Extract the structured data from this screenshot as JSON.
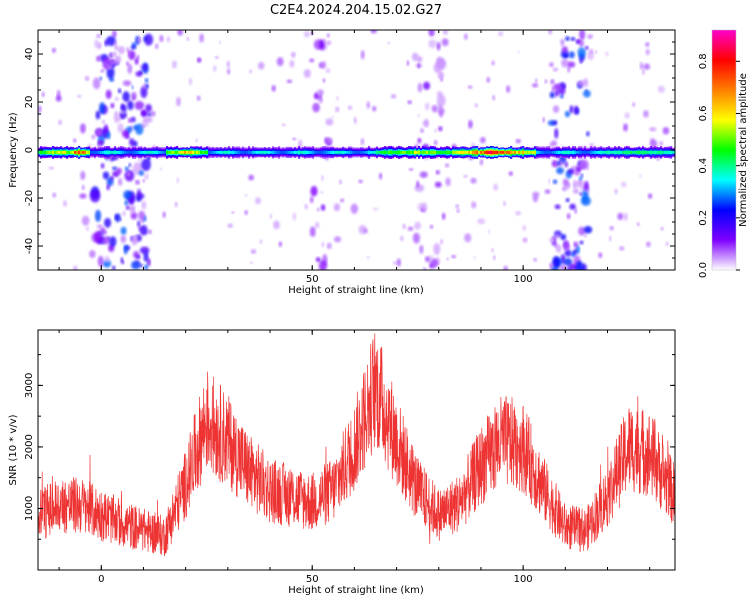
{
  "figure_title": "C2E4.2024.204.15.02.G27",
  "colors": {
    "snr_line": "#ee3333",
    "ridge_colormap": [
      "#ffffff",
      "#7f00ff",
      "#0000ff",
      "#00ffff",
      "#00ff00",
      "#ffff00",
      "#ff7f00",
      "#ff0000",
      "#ff00cc"
    ]
  },
  "chart_data": [
    {
      "type": "heatmap",
      "title": "",
      "xlabel": "Height of straight line (km)",
      "ylabel": "Frequency (Hz)",
      "xlim": [
        -15,
        136
      ],
      "ylim": [
        -50,
        50
      ],
      "xticks": [
        0,
        50,
        100
      ],
      "yticks": [
        -40,
        -20,
        0,
        20,
        40
      ],
      "colorbar": {
        "label": "Normalized spectral amplitude",
        "range": [
          0,
          0.92
        ],
        "ticks": [
          0.0,
          0.2,
          0.4,
          0.6,
          0.8
        ]
      },
      "zero_frequency_ridge": {
        "frequency": -1,
        "amplitude_segments": [
          {
            "from": -15,
            "to": -5,
            "peak": 0.65
          },
          {
            "from": -8,
            "to": -3,
            "peak": 0.9
          },
          {
            "from": 15,
            "to": 25,
            "peak": 0.7
          },
          {
            "from": 65,
            "to": 85,
            "peak": 0.6
          },
          {
            "from": 83,
            "to": 103,
            "peak": 0.9
          },
          {
            "from": 118,
            "to": 136,
            "peak": 0.45
          }
        ]
      },
      "noise_bands": [
        {
          "center": 5,
          "width": 12,
          "max_amplitude": 0.25
        },
        {
          "center": 111,
          "width": 8,
          "max_amplitude": 0.25
        },
        {
          "center": 52,
          "width": 4,
          "max_amplitude": 0.1
        },
        {
          "center": 78,
          "width": 6,
          "max_amplitude": 0.1
        }
      ]
    },
    {
      "type": "line",
      "title": "",
      "xlabel": "Height of straight line (km)",
      "ylabel": "SNR (10 * v/v)",
      "xlim": [
        -15,
        136
      ],
      "ylim": [
        0,
        3900
      ],
      "xticks": [
        0,
        50,
        100
      ],
      "yticks": [
        1000,
        2000,
        3000
      ],
      "series": [
        {
          "x": [
            -15,
            -10,
            -5,
            0,
            5,
            10,
            15,
            20,
            25,
            30,
            35,
            40,
            45,
            50,
            55,
            60,
            65,
            70,
            75,
            80,
            85,
            90,
            95,
            100,
            105,
            110,
            115,
            120,
            125,
            130,
            136
          ],
          "values": [
            900,
            1050,
            1050,
            900,
            750,
            650,
            550,
            1400,
            2450,
            2100,
            1600,
            1300,
            1200,
            1100,
            1300,
            2000,
            3000,
            2100,
            1300,
            900,
            1100,
            1700,
            2100,
            2000,
            1300,
            700,
            650,
            1200,
            2000,
            1900,
            1200
          ]
        }
      ]
    }
  ]
}
